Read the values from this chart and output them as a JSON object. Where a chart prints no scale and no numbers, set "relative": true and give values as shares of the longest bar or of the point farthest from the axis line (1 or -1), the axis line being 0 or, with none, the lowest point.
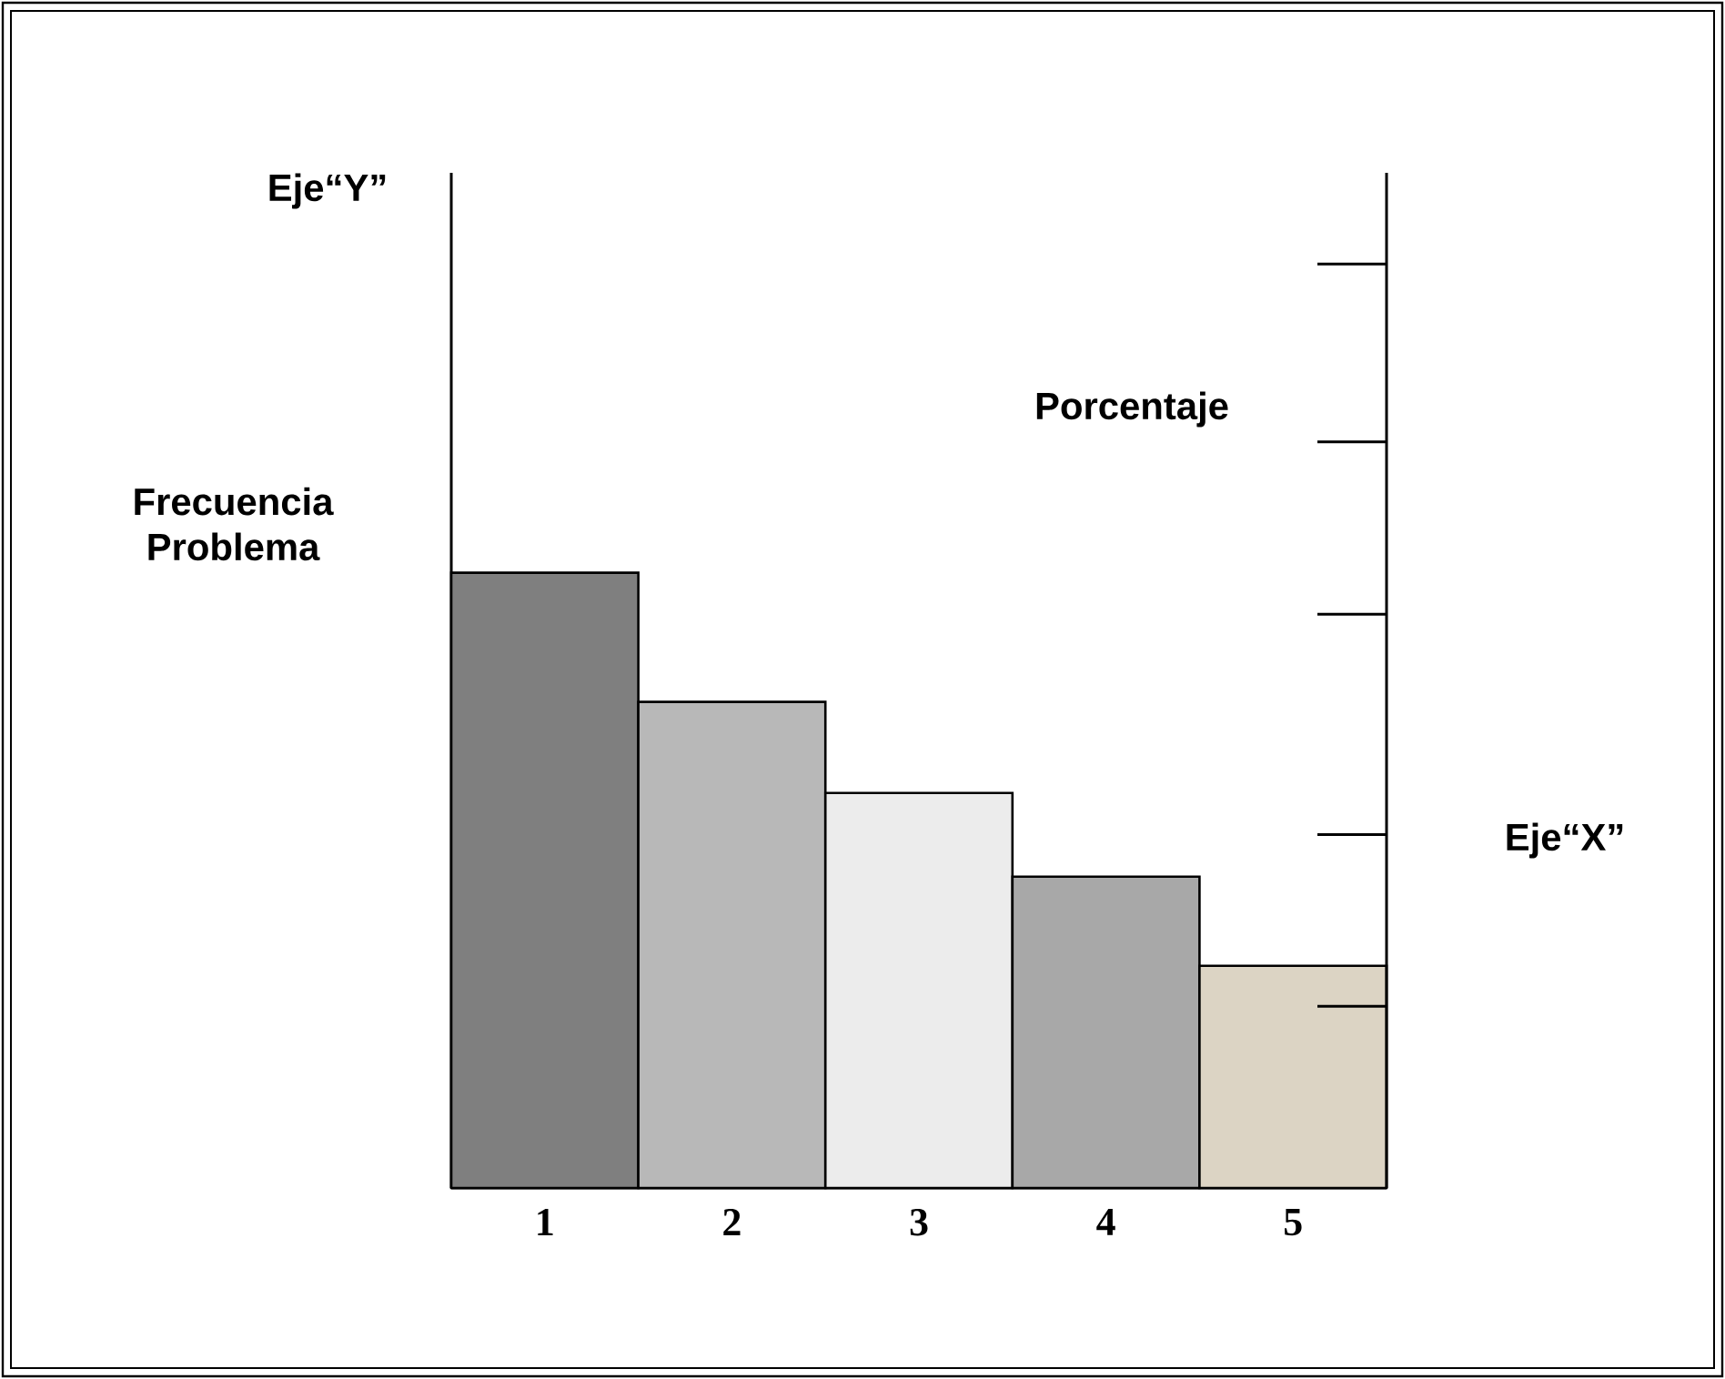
{
  "chart_data": {
    "type": "bar",
    "relative": true,
    "tick_labels": "x",
    "categories": [
      "1",
      "2",
      "3",
      "4",
      "5"
    ],
    "values": [
      1,
      0.79,
      0.642,
      0.506,
      0.361
    ],
    "colors": [
      "#7f7f7f",
      "#b8b8b8",
      "#ececec",
      "#a8a8a8",
      "#dcd4c4"
    ],
    "ylabel": "Frecuencia Problema",
    "y2label": "Porcentaje",
    "annotations": [
      "Eje“Y”",
      "Eje“X”"
    ]
  }
}
